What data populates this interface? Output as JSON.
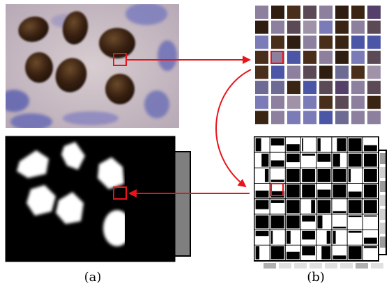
{
  "figure": {
    "panels": [
      {
        "id": "a",
        "caption": "(a)"
      },
      {
        "id": "b",
        "caption": "(b)"
      }
    ],
    "colors": {
      "highlight_box": "#e8141a",
      "arrow": "#e8141a",
      "tissue_background": "#c9bbc0",
      "nucleus_stain": "#3a2212",
      "counterstain": "#6b6fb8",
      "mask_foreground": "#ffffff",
      "mask_background": "#000000",
      "grid_line": "#ffffff",
      "stack_shadow": "#7f7f7f"
    },
    "icons": [
      "red-arrow-right",
      "red-arrow-left",
      "red-curved-arrow-down"
    ]
  }
}
